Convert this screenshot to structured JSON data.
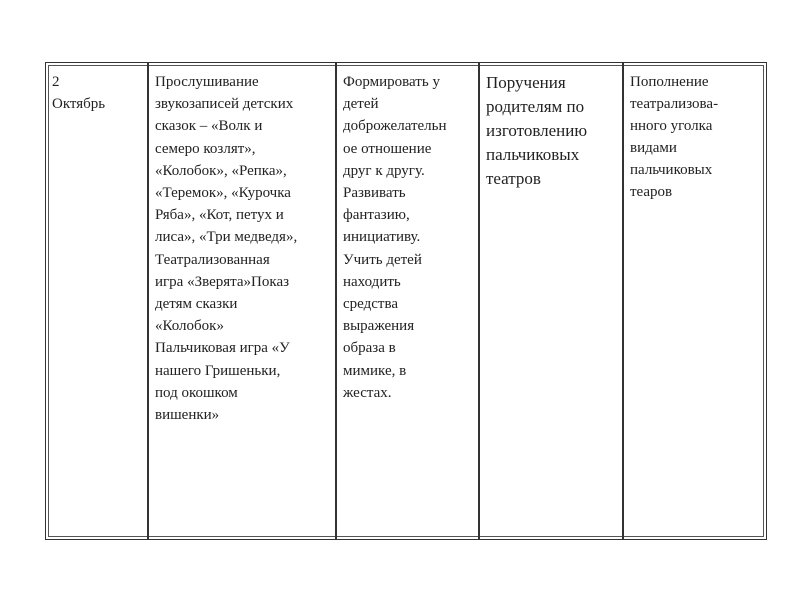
{
  "table": {
    "cells": [
      {
        "lines": [
          "2",
          "Октябрь"
        ]
      },
      {
        "lines": [
          "Прослушивание",
          "звукозаписей детских",
          "сказок – «Волк и",
          "семеро козлят»,",
          "«Колобок», «Репка»,",
          "«Теремок», «Курочка",
          "Ряба», «Кот, петух и",
          "лиса», «Три медведя»,",
          "Театрализованная",
          "игра «Зверята»Показ",
          "детям сказки",
          "«Колобок»",
          "Пальчиковая игра «У",
          "нашего Гришеньки,",
          "под окошком",
          "вишенки»"
        ]
      },
      {
        "lines": [
          "Формировать у",
          "детей",
          "доброжелательн",
          "ое отношение",
          "друг к другу.",
          "Развивать",
          "фантазию,",
          "инициативу.",
          "Учить детей",
          "находить",
          "средства",
          "выражения",
          "образа в",
          "мимике, в",
          "жестах."
        ]
      },
      {
        "lines": [
          "Поручения",
          "родителям по",
          "изготовлению",
          "пальчиковых",
          "театров"
        ]
      },
      {
        "lines": [
          "Пополнение",
          "театрализова-",
          "нного уголка",
          "видами",
          "пальчиковых",
          "теаров"
        ]
      }
    ]
  }
}
